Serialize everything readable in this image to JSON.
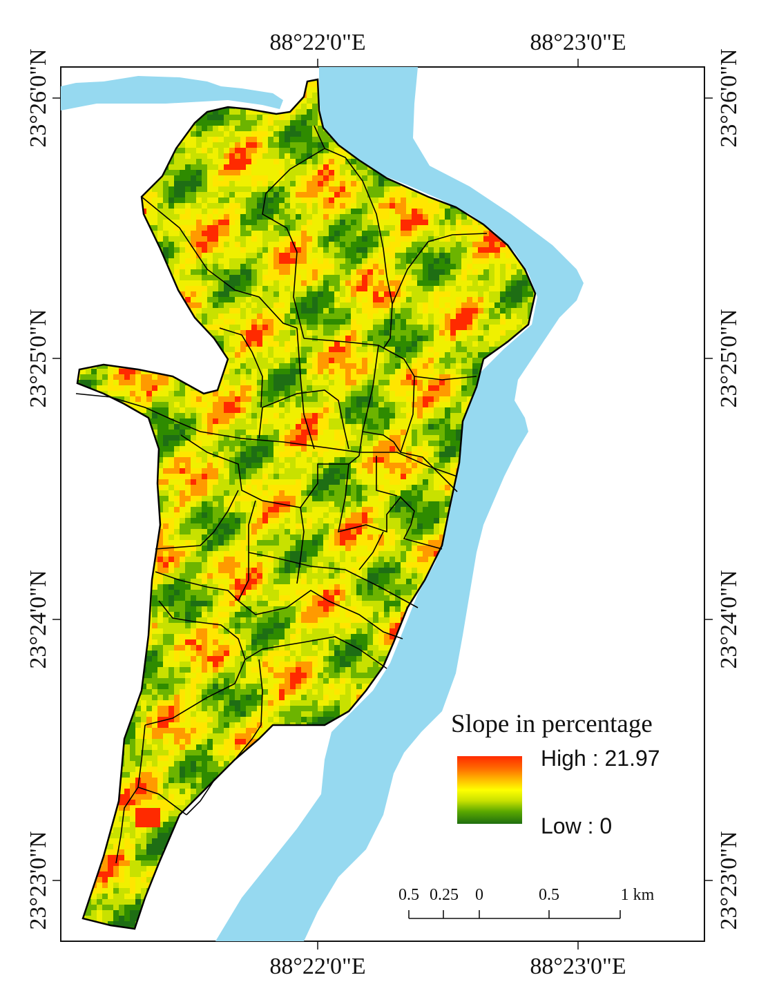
{
  "map": {
    "top_labels": [
      "88°22'0\"E",
      "88°23'0\"E"
    ],
    "bottom_labels": [
      "88°22'0\"E",
      "88°23'0\"E"
    ],
    "left_labels": [
      "23°26'0\"N",
      "23°25'0\"N",
      "23°24'0\"N",
      "23°23'0\"N"
    ],
    "right_labels": [
      "23°26'0\"N",
      "23°25'0\"N",
      "23°24'0\"N",
      "23°23'0\"N"
    ],
    "water_color": "#96d9f0",
    "boundary_color": "#000000",
    "road_color": "#000000"
  },
  "legend": {
    "title": "Slope in percentage",
    "high_label": "High : 21.97",
    "low_label": "Low : 0",
    "high_value": 21.97,
    "low_value": 0,
    "gradient_colors": [
      "#ff2a00",
      "#ff9a00",
      "#ffe600",
      "#f0f000",
      "#c8e100",
      "#6cb400",
      "#2e8b00",
      "#1e6e14"
    ]
  },
  "scale_bar": {
    "labels": [
      "0.5",
      "0.25",
      "0",
      "0.5",
      "1 km"
    ]
  }
}
